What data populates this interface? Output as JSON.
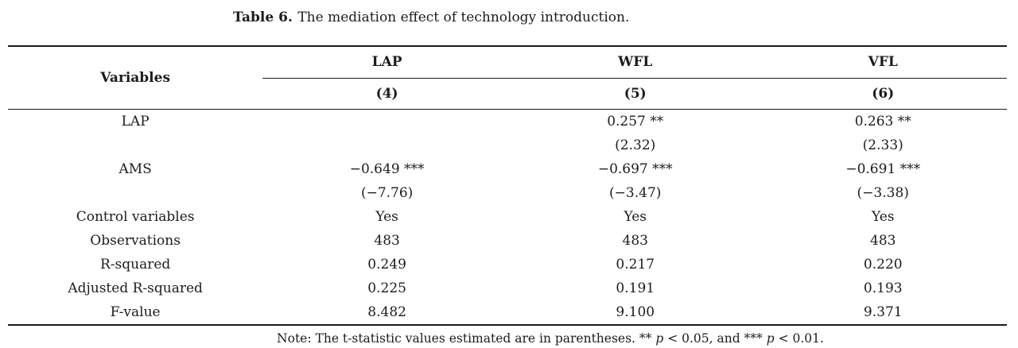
{
  "caption": {
    "label": "Table 6.",
    "text": "The mediation effect of technology introduction."
  },
  "table": {
    "header": {
      "variables_label": "Variables",
      "groups": [
        {
          "name": "LAP",
          "model": "(4)"
        },
        {
          "name": "WFL",
          "model": "(5)"
        },
        {
          "name": "VFL",
          "model": "(6)"
        }
      ]
    },
    "rows": [
      {
        "label": "LAP",
        "values": [
          "",
          "0.257 **",
          "0.263 **"
        ]
      },
      {
        "label": "",
        "values": [
          "",
          "(2.32)",
          "(2.33)"
        ]
      },
      {
        "label": "AMS",
        "values": [
          "−0.649 ***",
          "−0.697 ***",
          "−0.691 ***"
        ]
      },
      {
        "label": "",
        "values": [
          "(−7.76)",
          "(−3.47)",
          "(−3.38)"
        ]
      },
      {
        "label": "Control variables",
        "values": [
          "Yes",
          "Yes",
          "Yes"
        ]
      },
      {
        "label": "Observations",
        "values": [
          "483",
          "483",
          "483"
        ]
      },
      {
        "label": "R-squared",
        "values": [
          "0.249",
          "0.217",
          "0.220"
        ]
      },
      {
        "label": "Adjusted R-squared",
        "values": [
          "0.225",
          "0.191",
          "0.193"
        ]
      },
      {
        "label": "F-value",
        "values": [
          "8.482",
          "9.100",
          "9.371"
        ]
      }
    ]
  },
  "note": {
    "prefix": "Note: The t-statistic values estimated are in parentheses. ** ",
    "p1": "p",
    "mid": " < 0.05, and *** ",
    "p2": "p",
    "suffix": " < 0.01."
  }
}
